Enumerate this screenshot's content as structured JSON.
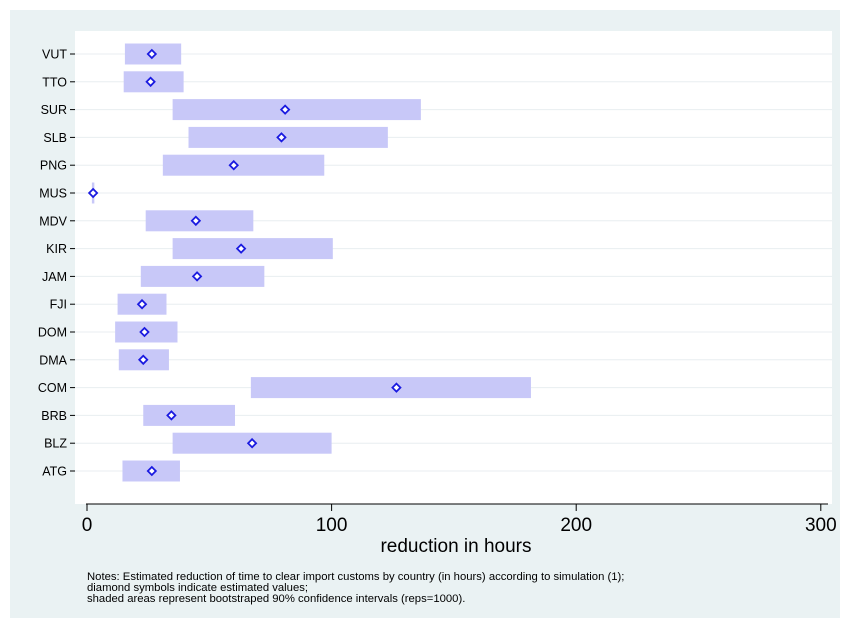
{
  "chart_data": {
    "type": "range-dot",
    "orientation": "horizontal",
    "categories": [
      "VUT",
      "TTO",
      "SUR",
      "SLB",
      "PNG",
      "MUS",
      "MDV",
      "KIR",
      "JAM",
      "FJI",
      "DOM",
      "DMA",
      "COM",
      "BRB",
      "BLZ",
      "ATG"
    ],
    "estimates": [
      26.5,
      26,
      81,
      79.5,
      60,
      2.5,
      44.5,
      63,
      45,
      22.5,
      23.5,
      23,
      126.5,
      34.5,
      67.5,
      26.5
    ],
    "ci_low": [
      15.5,
      15,
      35,
      41.5,
      31,
      2,
      24,
      35,
      22,
      12.5,
      11.5,
      13,
      67,
      23,
      35,
      14.5
    ],
    "ci_high": [
      38.5,
      39.5,
      136.5,
      123,
      97,
      3,
      68,
      100.5,
      72.5,
      32.5,
      37,
      33.5,
      181.5,
      60.5,
      100,
      38
    ],
    "xlabel": "reduction in hours",
    "xticks": [
      0,
      100,
      200,
      300
    ],
    "xlim": [
      -2,
      307
    ],
    "grid": "horizontal",
    "marker": "hollow diamond",
    "colors": {
      "background": "#eaf2f3",
      "plot_area": "#ffffff",
      "ci_band": "#c8c8f8",
      "marker": "#1a1ae0",
      "grid": "#e8eef0"
    }
  },
  "notes": [
    "Notes: Estimated reduction of time to clear import customs by country (in hours) according to simulation (1);",
    "diamond symbols indicate estimated values;",
    "shaded areas represent bootstraped 90% confidence intervals (reps=1000)."
  ]
}
